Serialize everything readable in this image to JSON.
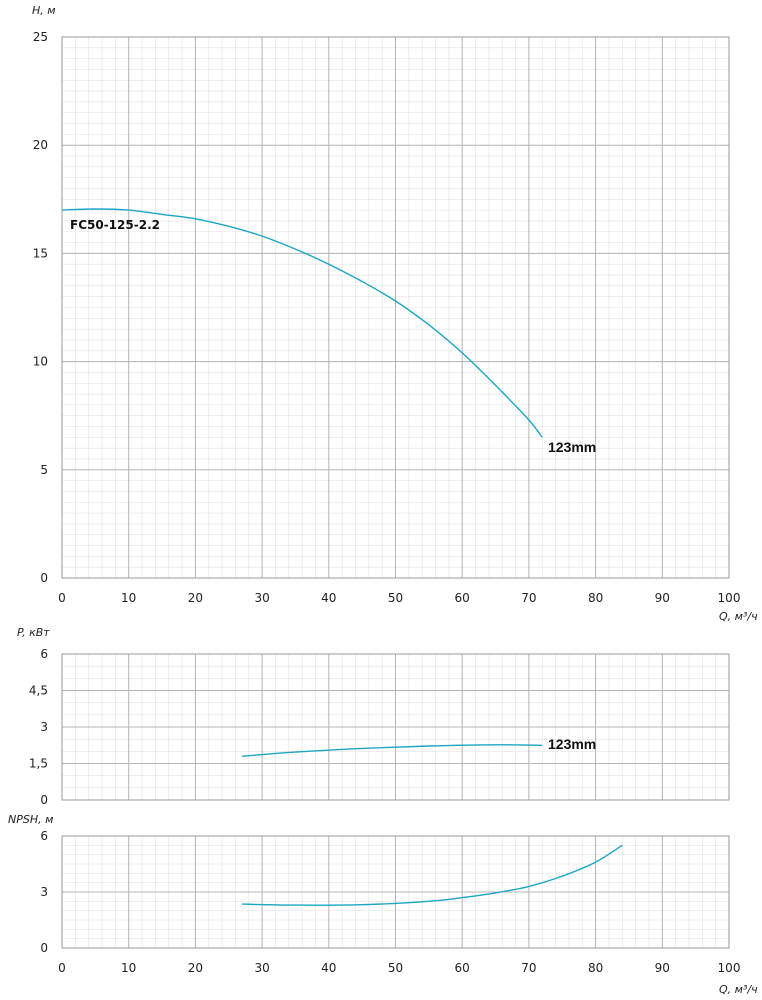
{
  "colors": {
    "curve": "#1aa6c4",
    "grid_major": "#b5b5b5",
    "grid_minor": "#e3e3e3",
    "axis": "#9a9a9a"
  },
  "pump_label": "FC50-125-2.2",
  "chart_data": [
    {
      "type": "line",
      "id": "head",
      "ylabel": "H, м",
      "xlabel": "",
      "xlim": [
        0,
        100
      ],
      "ylim": [
        0,
        25
      ],
      "x_ticks": [
        "0",
        "10",
        "20",
        "30",
        "40",
        "50",
        "60",
        "70",
        "80",
        "90",
        "100"
      ],
      "y_ticks": [
        "0",
        "5",
        "10",
        "15",
        "20",
        "25"
      ],
      "grid": true,
      "series": [
        {
          "name": "123mm",
          "x": [
            0,
            5,
            10,
            15,
            20,
            25,
            30,
            35,
            40,
            45,
            50,
            55,
            60,
            65,
            70,
            72
          ],
          "y": [
            17.0,
            17.05,
            17.0,
            16.8,
            16.6,
            16.25,
            15.8,
            15.2,
            14.5,
            13.7,
            12.8,
            11.7,
            10.4,
            8.9,
            7.3,
            6.5
          ]
        }
      ]
    },
    {
      "type": "line",
      "id": "power",
      "ylabel": "P, кВт",
      "xlim": [
        0,
        100
      ],
      "ylim": [
        0,
        6
      ],
      "y_ticks": [
        "0",
        "1,5",
        "3",
        "4,5",
        "6"
      ],
      "grid": true,
      "series": [
        {
          "name": "123mm",
          "x": [
            27,
            35,
            45,
            55,
            65,
            72
          ],
          "y": [
            1.8,
            1.97,
            2.12,
            2.22,
            2.27,
            2.25
          ]
        }
      ]
    },
    {
      "type": "line",
      "id": "npsh",
      "ylabel": "NPSH, м",
      "xlabel": "Q, м³/ч",
      "xlim": [
        0,
        100
      ],
      "ylim": [
        0,
        6
      ],
      "x_ticks": [
        "0",
        "10",
        "20",
        "30",
        "40",
        "50",
        "60",
        "70",
        "80",
        "90",
        "100"
      ],
      "y_ticks": [
        "0",
        "3",
        "6"
      ],
      "grid": true,
      "series": [
        {
          "name": "",
          "x": [
            27,
            35,
            45,
            55,
            60,
            65,
            70,
            75,
            80,
            84
          ],
          "y": [
            2.35,
            2.3,
            2.32,
            2.5,
            2.7,
            2.95,
            3.3,
            3.85,
            4.6,
            5.5
          ]
        }
      ]
    }
  ],
  "head_xlabel": "Q, м³/ч"
}
